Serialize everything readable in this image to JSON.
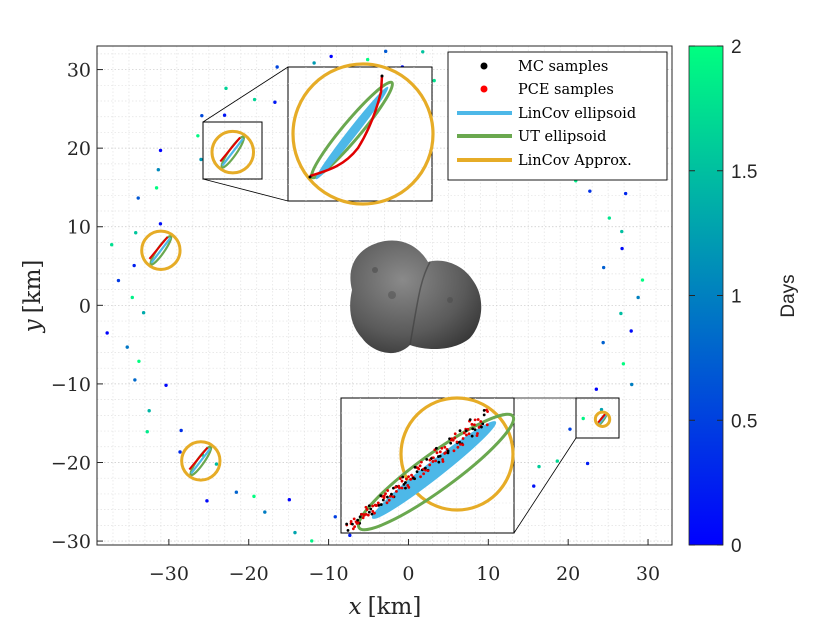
{
  "chart_data": {
    "type": "scatter",
    "title": "",
    "xlabel_var": "x",
    "xlabel_unit": "[km]",
    "ylabel_var": "y",
    "ylabel_unit": "[km]",
    "xlim": [
      -39,
      33
    ],
    "ylim": [
      -30.5,
      33
    ],
    "xticks": [
      -30,
      -20,
      -10,
      0,
      10,
      20,
      30
    ],
    "yticks": [
      -30,
      -20,
      -10,
      0,
      10,
      20,
      30
    ],
    "grid": "minor-dotted",
    "colorbar": {
      "label": "Days",
      "min": 0,
      "max": 2,
      "ticks": [
        "0",
        "0.5",
        "1",
        "1.5",
        "2"
      ],
      "colormap": [
        "#0000ff",
        "#00ff80"
      ]
    },
    "legend": {
      "position": "top-right",
      "entries": [
        {
          "label": "MC samples",
          "color": "#000000",
          "kind": "dot"
        },
        {
          "label": "PCE samples",
          "color": "#ff0000",
          "kind": "dot"
        },
        {
          "label": "LinCov ellipsoid",
          "color": "#4db8e8",
          "kind": "line"
        },
        {
          "label": "UT ellipsoid",
          "color": "#6aa84f",
          "kind": "line"
        },
        {
          "label": "LinCov Approx.",
          "color": "#e6ac27",
          "kind": "line"
        }
      ]
    },
    "orbit": {
      "center_x": -4,
      "center_y": 1,
      "radius_x": 31.5,
      "radius_y": 30,
      "samples": 90,
      "days": [
        0,
        2
      ]
    },
    "uncertainty_sites": [
      {
        "x": -22,
        "y": 19.5,
        "approx_radius": 2.6
      },
      {
        "x": -31,
        "y": 7,
        "approx_radius": 2.4
      },
      {
        "x": -26,
        "y": -19.8,
        "approx_radius": 2.4
      },
      {
        "x": 24.3,
        "y": -14.5,
        "approx_radius": 0.9
      }
    ],
    "insets": [
      {
        "name": "upper-left",
        "source_x": [
          -26,
          -19
        ],
        "source_y": [
          16,
          23
        ]
      },
      {
        "name": "lower-right",
        "source_x": [
          21,
          26
        ],
        "source_y": [
          -16.5,
          -12.5
        ]
      }
    ],
    "body_label": "asteroid"
  }
}
